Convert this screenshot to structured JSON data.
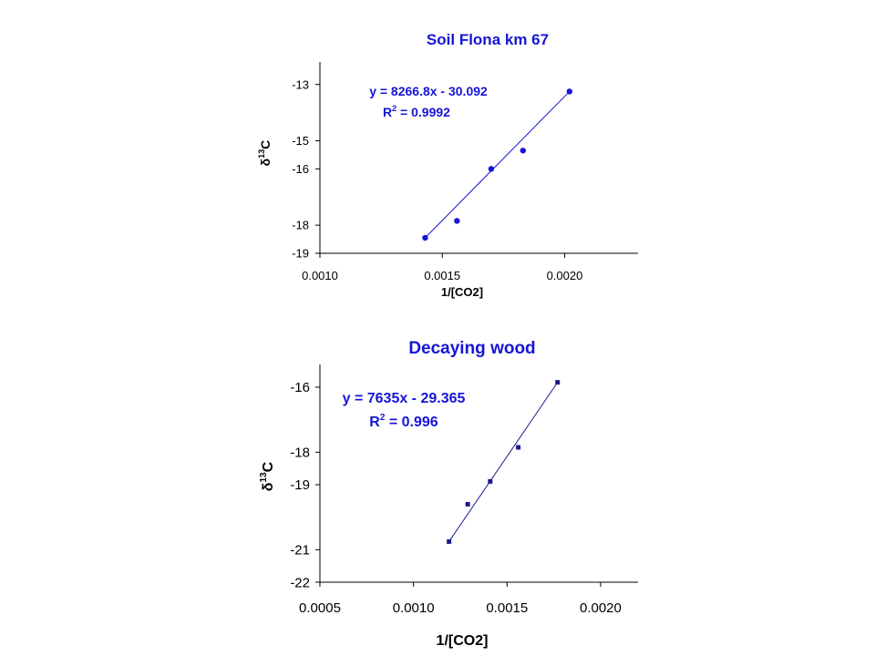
{
  "chart_data": [
    {
      "type": "scatter",
      "title": "Soil  Flona km 67",
      "xlabel": "1/[CO2]",
      "ylabel_main": "δ",
      "ylabel_sup": "13",
      "ylabel_tail": "C",
      "xlim": [
        0.001,
        0.0023
      ],
      "ylim": [
        -19,
        -12.2
      ],
      "x_ticks": [
        0.001,
        0.0015,
        0.002
      ],
      "x_tick_labels": [
        "0.0010",
        "0.0015",
        "0.0020"
      ],
      "y_ticks": [
        -13,
        -15,
        -16,
        -18,
        -19
      ],
      "y_tick_labels": [
        "-13",
        "-15",
        "-16",
        "-18",
        "-19"
      ],
      "equation": "y = 8266.8x - 30.092",
      "r2_prefix": "R",
      "r2_sup": "2",
      "r2_value": " = 0.9992",
      "marker": "circle",
      "grid": false,
      "series": [
        {
          "points": [
            {
              "x": 0.00143,
              "y": -18.45
            },
            {
              "x": 0.00156,
              "y": -17.85
            },
            {
              "x": 0.0017,
              "y": -16.0
            },
            {
              "x": 0.00183,
              "y": -15.35
            },
            {
              "x": 0.00202,
              "y": -13.25
            }
          ],
          "trendline": [
            [
              0.00143,
              -18.45
            ],
            [
              0.00202,
              -13.25
            ]
          ],
          "color": "#1515d6"
        }
      ]
    },
    {
      "type": "scatter",
      "title": "Decaying wood",
      "xlabel": "1/[CO2]",
      "ylabel_main": "δ",
      "ylabel_sup": "13",
      "ylabel_tail": "C",
      "xlim": [
        0.0005,
        0.0022
      ],
      "ylim": [
        -22,
        -15.3
      ],
      "x_ticks": [
        0.0005,
        0.001,
        0.0015,
        0.002
      ],
      "x_tick_labels": [
        "0.0005",
        "0.0010",
        "0.0015",
        "0.0020"
      ],
      "y_ticks": [
        -16,
        -18,
        -19,
        -21,
        -22
      ],
      "y_tick_labels": [
        "-16",
        "-18",
        "-19",
        "-21",
        "-22"
      ],
      "equation": "y = 7635x - 29.365",
      "r2_prefix": "R",
      "r2_sup": "2",
      "r2_value": " = 0.996",
      "marker": "square",
      "grid": false,
      "series": [
        {
          "points": [
            {
              "x": 0.00119,
              "y": -20.75
            },
            {
              "x": 0.00129,
              "y": -19.6
            },
            {
              "x": 0.00141,
              "y": -18.9
            },
            {
              "x": 0.00156,
              "y": -17.85
            },
            {
              "x": 0.00177,
              "y": -15.85
            }
          ],
          "trendline": [
            [
              0.00119,
              -20.75
            ],
            [
              0.00177,
              -15.85
            ]
          ],
          "color": "#1b1b8a"
        }
      ]
    }
  ]
}
